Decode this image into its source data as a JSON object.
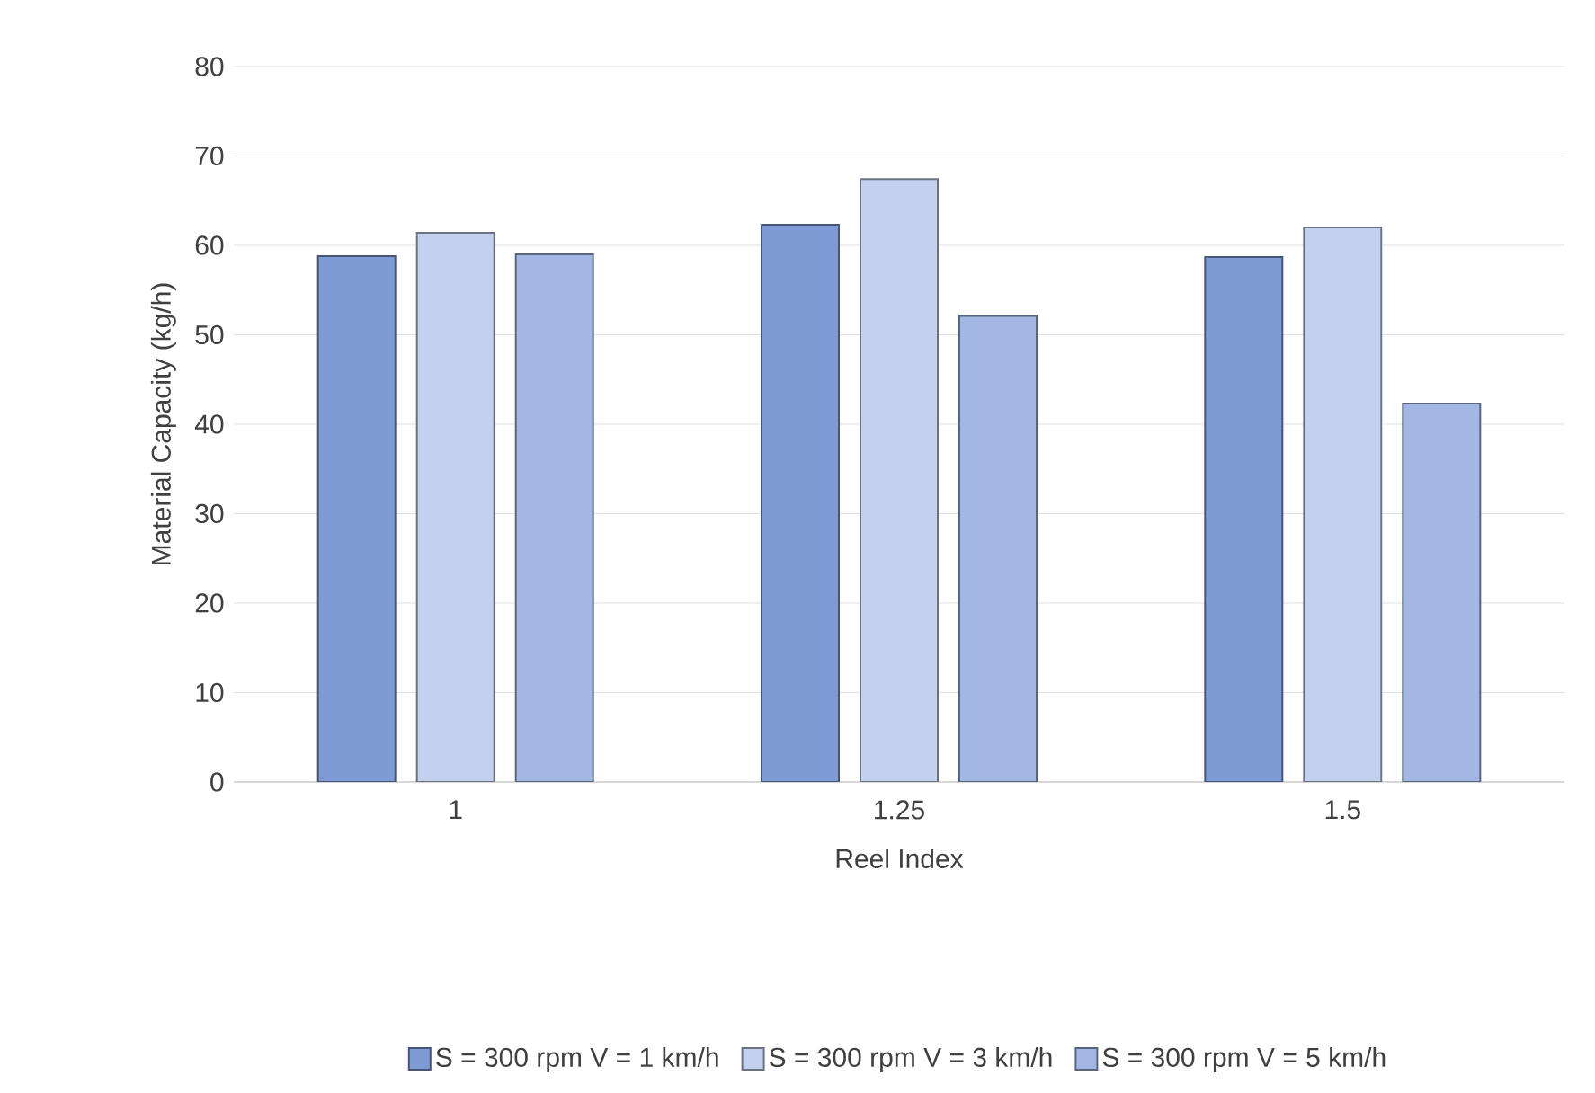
{
  "chart_data": {
    "type": "bar",
    "xlabel": "Reel Index",
    "ylabel": "Material Capacity (kg/h)",
    "categories": [
      "1",
      "1.25",
      "1.5"
    ],
    "series": [
      {
        "name": "S = 300 rpm V = 1 km/h",
        "color": "#7f9bd6",
        "values": [
          58.8,
          62.3,
          58.7
        ]
      },
      {
        "name": "S = 300 rpm V = 3 km/h",
        "color": "#c3d1ee",
        "values": [
          61.4,
          67.4,
          62.0
        ]
      },
      {
        "name": "S = 300 rpm V = 5 km/h",
        "color": "#a2b7e3",
        "values": [
          59.0,
          52.1,
          42.3
        ]
      }
    ],
    "ylim": [
      0,
      80
    ],
    "yticks": [
      0,
      10,
      20,
      30,
      40,
      50,
      60,
      70,
      80
    ],
    "grid": "y",
    "legend": "bottom"
  }
}
